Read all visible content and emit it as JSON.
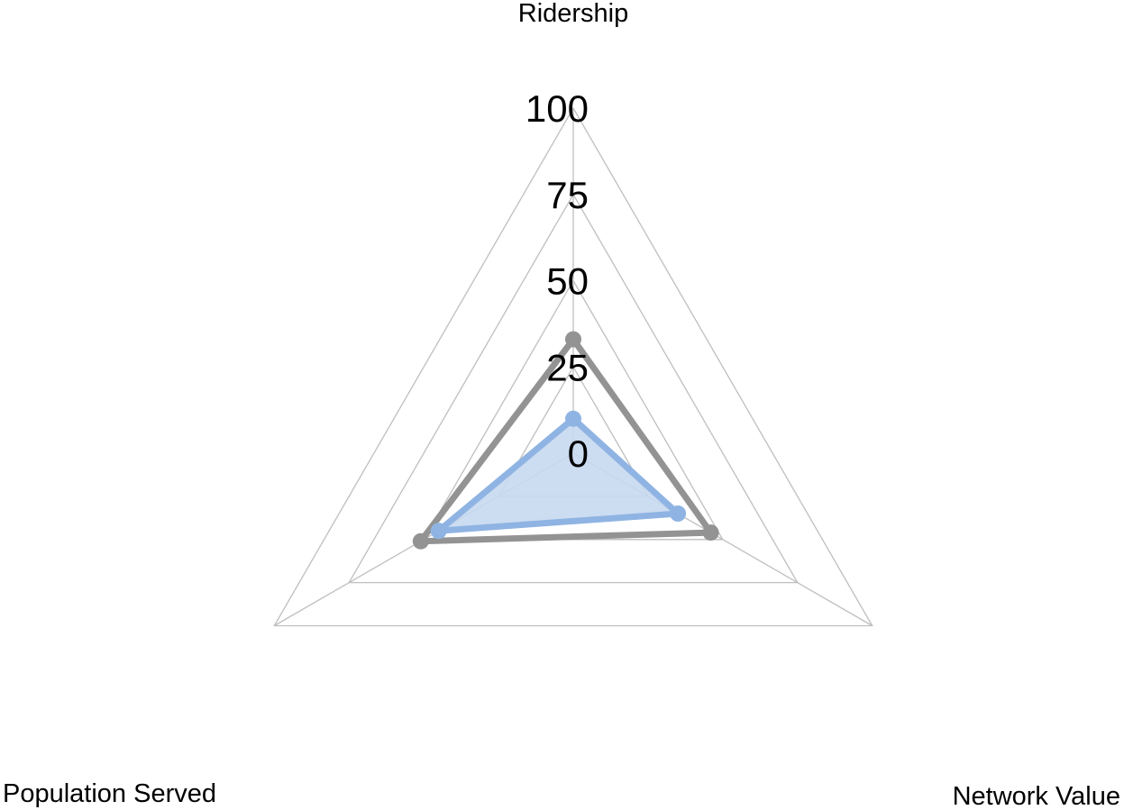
{
  "chart_data": {
    "type": "radar",
    "categories": [
      "Ridership",
      "Network Value",
      "Population Served"
    ],
    "radial_ticks": [
      "0",
      "25",
      "50",
      "75",
      "100"
    ],
    "rlim": [
      0,
      100
    ],
    "grid": true,
    "legend": "none",
    "series": [
      {
        "values": [
          33,
          46,
          51
        ],
        "color": "#939393",
        "fill": "none"
      },
      {
        "values": [
          10,
          35,
          45
        ],
        "color": "#8fb4e3",
        "fill": "#c6d8f0"
      }
    ],
    "colors": {
      "grid": "#bfbfbf",
      "text": "#000000"
    }
  }
}
